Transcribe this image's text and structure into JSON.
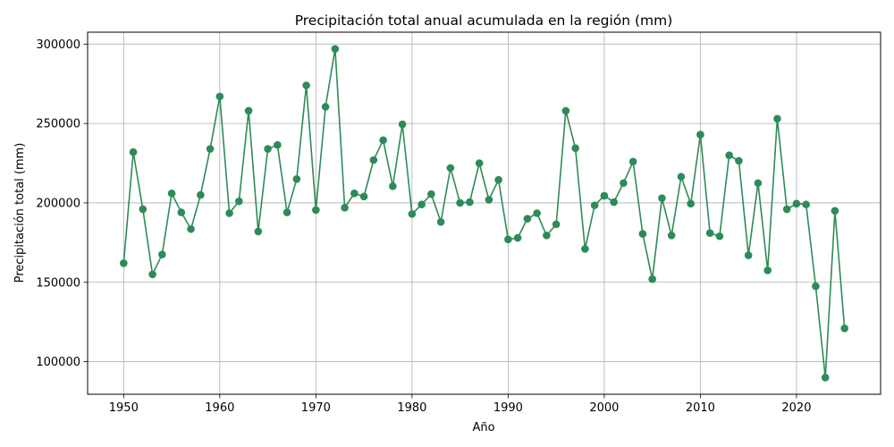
{
  "chart_data": {
    "type": "line",
    "title": "Precipitación total anual acumulada en la región (mm)",
    "xlabel": "Año",
    "ylabel": "Precipitación total (mm)",
    "xlim": [
      1946.25,
      2028.75
    ],
    "ylim": [
      79500,
      307500
    ],
    "xticks": [
      1950,
      1960,
      1970,
      1980,
      1990,
      2000,
      2010,
      2020
    ],
    "yticks": [
      100000,
      150000,
      200000,
      250000,
      300000
    ],
    "grid": true,
    "marker": "circle",
    "color": "#2e8b57",
    "x": [
      1950,
      1951,
      1952,
      1953,
      1954,
      1955,
      1956,
      1957,
      1958,
      1959,
      1960,
      1961,
      1962,
      1963,
      1964,
      1965,
      1966,
      1967,
      1968,
      1969,
      1970,
      1971,
      1972,
      1973,
      1974,
      1975,
      1976,
      1977,
      1978,
      1979,
      1980,
      1981,
      1982,
      1983,
      1984,
      1985,
      1986,
      1987,
      1988,
      1989,
      1990,
      1991,
      1992,
      1993,
      1994,
      1995,
      1996,
      1997,
      1998,
      1999,
      2000,
      2001,
      2002,
      2003,
      2004,
      2005,
      2006,
      2007,
      2008,
      2009,
      2010,
      2011,
      2012,
      2013,
      2014,
      2015,
      2016,
      2017,
      2018,
      2019,
      2020,
      2021,
      2022,
      2023,
      2024,
      2025
    ],
    "y": [
      162000,
      232000,
      196000,
      155000,
      167500,
      206000,
      194000,
      183500,
      205000,
      234000,
      267000,
      193500,
      201000,
      258000,
      182000,
      234000,
      236500,
      194000,
      215000,
      274000,
      195500,
      260500,
      297000,
      197000,
      206000,
      204000,
      227000,
      239500,
      210500,
      249500,
      193000,
      199000,
      205500,
      188000,
      222000,
      200000,
      200500,
      225000,
      202000,
      214500,
      177000,
      178000,
      190000,
      193500,
      179500,
      186500,
      258000,
      234500,
      171000,
      198500,
      204500,
      200500,
      212500,
      226000,
      180500,
      152000,
      203000,
      179500,
      216500,
      199500,
      243000,
      181000,
      179000,
      230000,
      226500,
      167000,
      212500,
      157500,
      253000,
      196000,
      199500,
      199000,
      147500,
      90000,
      195000,
      121000
    ]
  }
}
